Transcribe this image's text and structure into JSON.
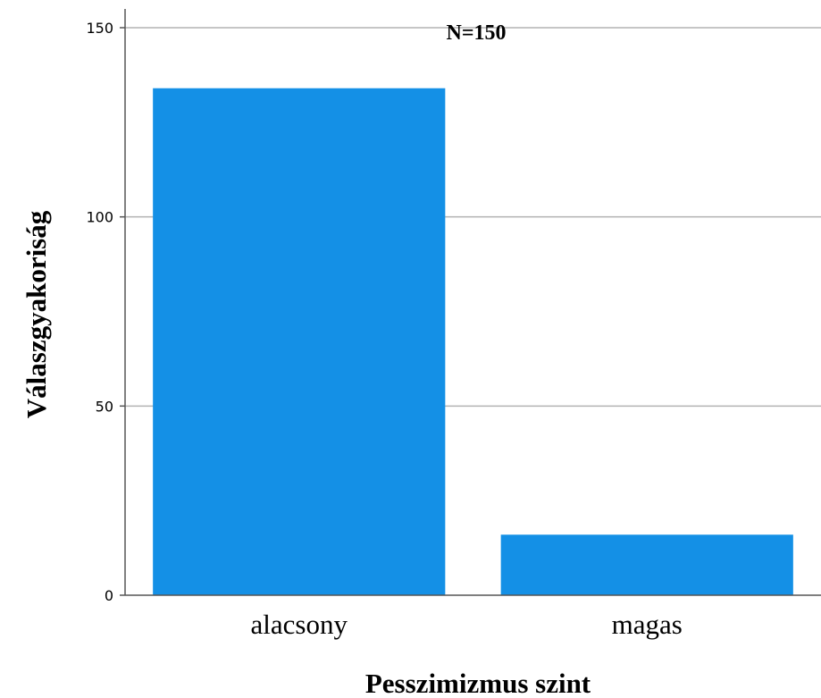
{
  "chart_data": {
    "type": "bar",
    "categories": [
      "alacsony",
      "magas"
    ],
    "values": [
      134,
      16
    ],
    "title": "",
    "annotation": "N=150",
    "xlabel": "Pesszimizmus szint",
    "ylabel": "Válaszgyakoriság",
    "ylim": [
      0,
      150
    ],
    "yticks": [
      0,
      50,
      100,
      150
    ],
    "grid": true,
    "legend": "none",
    "bar_color": "#1490e6",
    "grid_color": "#b3b3b3",
    "axis_color": "#555555"
  }
}
